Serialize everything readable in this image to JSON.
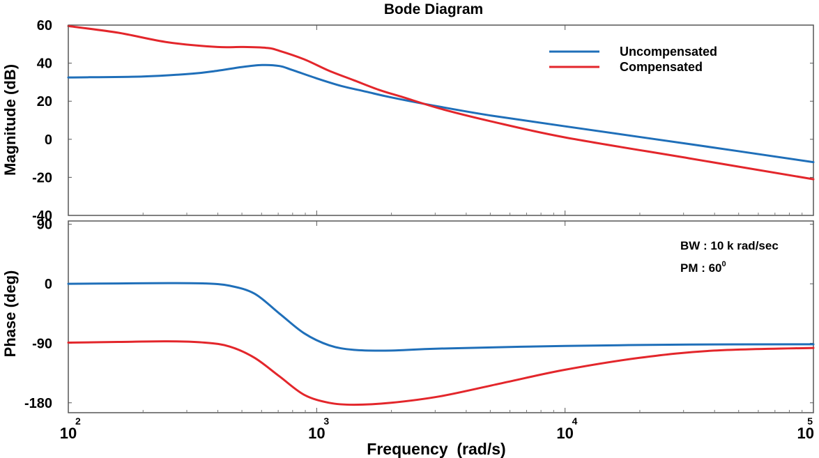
{
  "chart_data": {
    "type": "line",
    "title": "Bode Diagram",
    "xlabel": "Frequency  (rad/s)",
    "xscale": "log",
    "xlim_log10": [
      2,
      5
    ],
    "x_ticks": [
      {
        "base": "10",
        "exp": "2"
      },
      {
        "base": "10",
        "exp": "3"
      },
      {
        "base": "10",
        "exp": "4"
      },
      {
        "base": "10",
        "exp": "5"
      }
    ],
    "colors": {
      "uncompensated": "#1f6fb9",
      "compensated": "#e3262b"
    },
    "legend": {
      "placement": "top-right",
      "entries": [
        {
          "name": "Uncompensated",
          "color_key": "uncompensated"
        },
        {
          "name": "Compensated",
          "color_key": "compensated"
        }
      ]
    },
    "magnitude": {
      "ylabel": "Magnitude (dB)",
      "ylim": [
        -40,
        60
      ],
      "yticks": [
        "60",
        "40",
        "20",
        "0",
        "-20",
        "-40"
      ],
      "series": [
        {
          "name": "Uncompensated",
          "color_key": "uncompensated",
          "log10_w": [
            2.0,
            2.3,
            2.5,
            2.6,
            2.7,
            2.78,
            2.85,
            2.9,
            3.0,
            3.1,
            3.2,
            3.3,
            3.5,
            3.7,
            4.0,
            4.5,
            5.0
          ],
          "values": [
            32.5,
            33,
            34.5,
            36,
            38,
            39,
            38.5,
            36.5,
            32,
            28,
            25,
            22,
            17,
            12.5,
            6.8,
            -2.5,
            -12
          ]
        },
        {
          "name": "Compensated",
          "color_key": "compensated",
          "log10_w": [
            2.0,
            2.2,
            2.4,
            2.6,
            2.7,
            2.8,
            2.85,
            2.95,
            3.05,
            3.15,
            3.25,
            3.35,
            3.5,
            3.7,
            4.0,
            4.5,
            5.0
          ],
          "values": [
            59.5,
            56,
            51,
            48.5,
            48.5,
            48,
            46.5,
            42,
            36,
            31,
            26,
            22,
            16,
            9.5,
            1,
            -10,
            -21
          ]
        }
      ]
    },
    "phase": {
      "ylabel": "Phase (deg)",
      "ylim": [
        -195,
        95
      ],
      "yticks": [
        {
          "label": "90",
          "value": 90
        },
        {
          "label": "0",
          "value": 0
        },
        {
          "label": "-90",
          "value": -90
        },
        {
          "label": "-180",
          "value": -180
        }
      ],
      "series": [
        {
          "name": "Uncompensated",
          "color_key": "uncompensated",
          "log10_w": [
            2.0,
            2.2,
            2.4,
            2.55,
            2.65,
            2.75,
            2.85,
            2.95,
            3.05,
            3.15,
            3.3,
            3.5,
            4.0,
            4.5,
            5.0
          ],
          "values": [
            0,
            0.5,
            1,
            0.5,
            -3,
            -15,
            -45,
            -75,
            -93,
            -100,
            -101,
            -98,
            -94,
            -92,
            -91.5
          ]
        },
        {
          "name": "Compensated",
          "color_key": "compensated",
          "log10_w": [
            2.0,
            2.2,
            2.4,
            2.55,
            2.65,
            2.75,
            2.85,
            2.95,
            3.05,
            3.15,
            3.3,
            3.5,
            3.75,
            4.0,
            4.3,
            4.6,
            5.0
          ],
          "values": [
            -89,
            -88,
            -87,
            -89,
            -95,
            -112,
            -140,
            -168,
            -180,
            -183,
            -180,
            -170,
            -150,
            -130,
            -112,
            -101,
            -97
          ]
        }
      ]
    },
    "annotations": {
      "bw": "BW : 10 k rad/sec",
      "pm_text": "PM : 60",
      "pm_superscript": "0"
    }
  }
}
